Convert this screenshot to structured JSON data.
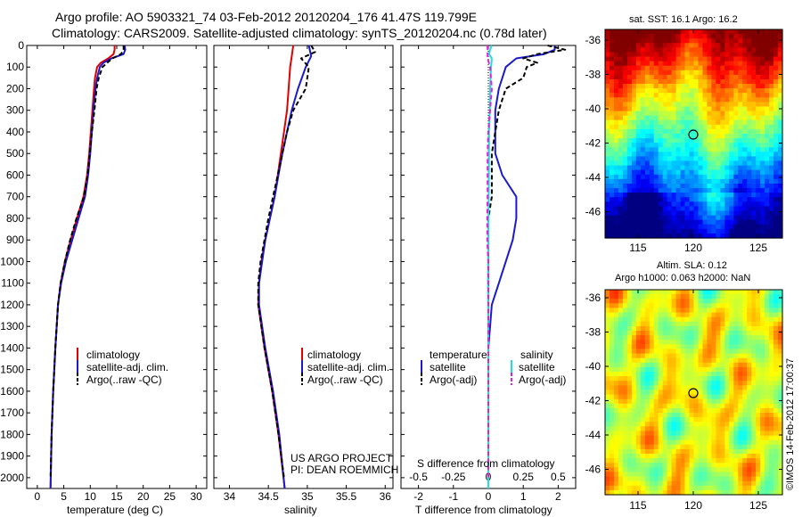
{
  "title_line1": "Argo profile: AO 5903321_74 03-Feb-2012 20120204_176 41.47S 119.799E",
  "title_line2": "Climatology: CARS2009. Satellite-adjusted climatology: synTS_20120204.nc (0.78d later)",
  "credit": "US ARGO PROJECT",
  "pi": "PI: DEAN ROEMMICH",
  "imos_stamp": "©IMOS 14-Feb-2012 17:00:37",
  "colors": {
    "climatology": "#e00000",
    "satellite": "#1a1acc",
    "argo": "#000000",
    "sat_salinity": "#22dddd",
    "argo_salinity": "#dd22dd"
  },
  "legend_temp": [
    "climatology",
    "satellite-adj. clim.",
    "Argo(..raw -QC)"
  ],
  "legend_sal": [
    "climatology",
    "satellite-adj. clim.",
    "Argo(..raw -QC)"
  ],
  "legend_diff": {
    "temperature_head": "temperature",
    "salinity_head": "salinity",
    "t_items": [
      "satellite",
      "Argo(-adj)"
    ],
    "s_items": [
      "satellite",
      "Argo(-adj)"
    ]
  },
  "chart_data": [
    {
      "type": "line",
      "ylim": [
        2050,
        0
      ],
      "yticks": [
        0,
        100,
        200,
        300,
        400,
        500,
        600,
        700,
        800,
        900,
        1000,
        1100,
        1200,
        1300,
        1400,
        1500,
        1600,
        1700,
        1800,
        1900,
        2000
      ],
      "xlabel": "temperature (deg C)",
      "xlim": [
        -2,
        32
      ],
      "xticks": [
        0,
        5,
        10,
        15,
        20,
        25,
        30
      ],
      "series": [
        {
          "role": "climatology",
          "depth": [
            0,
            20,
            40,
            60,
            80,
            100,
            150,
            200,
            300,
            400,
            500,
            600,
            700,
            800,
            900,
            1000,
            1100,
            1200,
            1400,
            1600,
            1800,
            2050
          ],
          "values": [
            14.6,
            14.6,
            14.4,
            13.4,
            12.0,
            11.3,
            10.9,
            10.7,
            10.4,
            10.1,
            9.8,
            9.4,
            8.7,
            7.5,
            6.3,
            5.2,
            4.4,
            3.9,
            3.4,
            3.0,
            2.7,
            2.5
          ]
        },
        {
          "role": "satellite",
          "depth": [
            0,
            20,
            40,
            60,
            80,
            100,
            150,
            200,
            300,
            400,
            500,
            600,
            700,
            800,
            900,
            1000,
            1100,
            1200,
            1400,
            1600,
            1800,
            2050
          ],
          "values": [
            16.5,
            16.6,
            16.3,
            14.0,
            12.5,
            11.8,
            11.3,
            11.0,
            10.6,
            10.3,
            10.0,
            9.6,
            9.0,
            7.8,
            6.6,
            5.4,
            4.5,
            3.9,
            3.4,
            3.0,
            2.7,
            2.5
          ]
        },
        {
          "role": "argo",
          "depth": [
            0,
            20,
            40,
            60,
            80,
            100,
            150,
            200,
            300,
            400,
            500,
            600,
            700,
            800,
            900,
            1000,
            1100,
            1200,
            1400,
            1600,
            1800,
            2000
          ],
          "values": [
            16.3,
            16.3,
            15.8,
            14.2,
            13.2,
            12.3,
            11.6,
            11.2,
            10.8,
            10.3,
            9.9,
            9.5,
            8.8,
            7.4,
            6.2,
            5.2,
            4.4,
            3.9,
            3.4,
            3.0,
            2.7,
            2.5
          ]
        }
      ]
    },
    {
      "type": "line",
      "ylim": [
        2050,
        0
      ],
      "xlabel": "salinity",
      "xlim": [
        33.8,
        36.1
      ],
      "xticks": [
        34,
        34.5,
        35,
        35.5,
        36
      ],
      "series": [
        {
          "role": "climatology",
          "depth": [
            0,
            50,
            100,
            200,
            300,
            400,
            500,
            600,
            700,
            800,
            900,
            1000,
            1100,
            1200,
            1400,
            1600,
            1800,
            2050
          ],
          "values": [
            34.82,
            34.8,
            34.78,
            34.76,
            34.74,
            34.7,
            34.66,
            34.62,
            34.58,
            34.52,
            34.46,
            34.41,
            34.38,
            34.37,
            34.45,
            34.55,
            34.63,
            34.71
          ]
        },
        {
          "role": "satellite",
          "depth": [
            0,
            50,
            100,
            200,
            300,
            400,
            500,
            600,
            700,
            800,
            900,
            1000,
            1100,
            1200,
            1400,
            1600,
            1800,
            2050
          ],
          "values": [
            35.02,
            35.05,
            34.98,
            34.88,
            34.8,
            34.74,
            34.68,
            34.63,
            34.58,
            34.52,
            34.46,
            34.42,
            34.38,
            34.38,
            34.46,
            34.56,
            34.64,
            34.71
          ]
        },
        {
          "role": "argo",
          "depth": [
            0,
            30,
            60,
            100,
            200,
            300,
            400,
            500,
            600,
            700,
            800,
            900,
            1000,
            1100,
            1200,
            1400,
            1600,
            1800,
            2000
          ],
          "values": [
            35.05,
            35.1,
            34.92,
            35.02,
            34.98,
            34.82,
            34.74,
            34.68,
            34.62,
            34.56,
            34.5,
            34.45,
            34.4,
            34.37,
            34.37,
            34.45,
            34.55,
            34.63,
            34.7
          ]
        }
      ]
    },
    {
      "type": "line",
      "ylim": [
        2050,
        0
      ],
      "xlabel": "T difference from climatology",
      "xlabel_top": "S difference from climatology",
      "xlim": [
        -2.5,
        2.5
      ],
      "xticks": [
        -2,
        -1,
        0,
        1,
        2
      ],
      "xticks_top": [
        "-0.5",
        "-0.25",
        "0",
        "0.25",
        "0.5"
      ],
      "series": [
        {
          "role": "satellite",
          "depth": [
            0,
            20,
            40,
            60,
            100,
            150,
            200,
            300,
            400,
            500,
            600,
            700,
            800,
            900,
            1000,
            1100,
            1200,
            1300,
            1400,
            1600,
            1800,
            2050
          ],
          "values": [
            1.9,
            1.9,
            1.6,
            0.8,
            0.5,
            0.4,
            0.3,
            0.2,
            0.2,
            0.2,
            0.4,
            0.8,
            0.8,
            0.7,
            0.5,
            0.3,
            0.1,
            0.05,
            0.0,
            0.0,
            0.0,
            0.0
          ]
        },
        {
          "role": "argo",
          "depth": [
            0,
            20,
            40,
            60,
            80,
            100,
            150,
            200,
            300,
            400,
            500,
            600,
            700,
            800,
            900,
            1000,
            1100,
            1200,
            1400,
            1600,
            1800,
            2000
          ],
          "values": [
            1.7,
            2.2,
            1.4,
            1.0,
            1.4,
            1.1,
            1.0,
            0.5,
            0.3,
            0.2,
            0.1,
            0.1,
            0.1,
            0.0,
            0.0,
            0.0,
            0.0,
            0.0,
            0.0,
            0.0,
            0.0,
            0.0
          ]
        },
        {
          "role": "sat_salinity",
          "depth": [
            0,
            20,
            40,
            60,
            100,
            150,
            200,
            300,
            400,
            500,
            700,
            900,
            1100,
            1300,
            1500,
            1800,
            2050
          ],
          "values": [
            0.1,
            0.05,
            0.02,
            0.1,
            0.08,
            0.06,
            0.05,
            0.04,
            0.02,
            0.02,
            0.01,
            0.0,
            -0.01,
            0.0,
            0.0,
            0.0,
            0.0
          ]
        },
        {
          "role": "argo_salinity",
          "depth": [
            0,
            30,
            60,
            100,
            200,
            300,
            400,
            500,
            600,
            700,
            800,
            900,
            1000,
            1200,
            1400,
            1600,
            1800,
            2000
          ],
          "values": [
            -0.02,
            -0.02,
            -0.02,
            0.05,
            0.1,
            0.05,
            0.0,
            -0.02,
            -0.02,
            -0.02,
            -0.03,
            -0.03,
            0.0,
            0.0,
            0.0,
            0.0,
            0.0,
            0.0
          ]
        }
      ]
    }
  ],
  "maps": {
    "sst_title": "sat. SST: 16.1 Argo: 16.2",
    "sla_title1": "Altim. SLA: 0.12",
    "sla_title2": "Argo h1000: 0.063 h2000: NaN",
    "lat_ticks": [
      "-36",
      "-38",
      "-40",
      "-42",
      "-44",
      "-46"
    ],
    "lon_ticks": [
      "115",
      "120",
      "125"
    ],
    "float_lon": 119.8,
    "float_lat": -41.47
  }
}
